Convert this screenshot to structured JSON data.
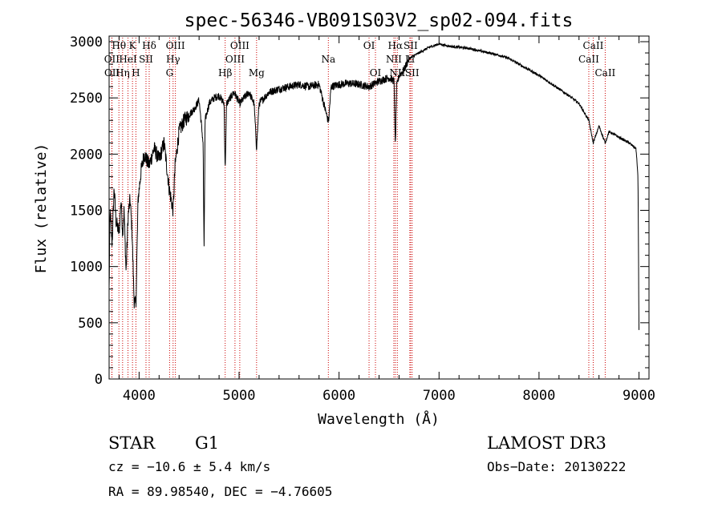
{
  "chart_data": {
    "type": "line",
    "title": "spec-56346-VB091S03V2_sp02-094.fits",
    "xlabel": "Wavelength (Å)",
    "ylabel": "Flux (relative)",
    "xlim": [
      3700,
      9100
    ],
    "ylim": [
      0,
      3050
    ],
    "xticks": [
      4000,
      5000,
      6000,
      7000,
      8000,
      9000
    ],
    "yticks": [
      0,
      500,
      1000,
      1500,
      2000,
      2500,
      3000
    ],
    "spectrum_color": "#000000",
    "marker_color": "#cc0000",
    "spectrum_anchors": [
      [
        3700,
        800
      ],
      [
        3710,
        1500
      ],
      [
        3730,
        1200
      ],
      [
        3750,
        1700
      ],
      [
        3770,
        1400
      ],
      [
        3800,
        1300
      ],
      [
        3820,
        1600
      ],
      [
        3835,
        1300
      ],
      [
        3850,
        1500
      ],
      [
        3870,
        950
      ],
      [
        3890,
        1450
      ],
      [
        3910,
        1600
      ],
      [
        3930,
        1300
      ],
      [
        3950,
        700
      ],
      [
        3968,
        650
      ],
      [
        3990,
        1600
      ],
      [
        4020,
        1850
      ],
      [
        4050,
        2000
      ],
      [
        4101,
        1900
      ],
      [
        4150,
        2050
      ],
      [
        4200,
        1950
      ],
      [
        4250,
        2100
      ],
      [
        4300,
        1700
      ],
      [
        4340,
        1500
      ],
      [
        4360,
        1900
      ],
      [
        4400,
        2200
      ],
      [
        4450,
        2300
      ],
      [
        4500,
        2350
      ],
      [
        4550,
        2400
      ],
      [
        4600,
        2480
      ],
      [
        4640,
        2100
      ],
      [
        4650,
        1100
      ],
      [
        4660,
        2300
      ],
      [
        4700,
        2450
      ],
      [
        4750,
        2500
      ],
      [
        4800,
        2520
      ],
      [
        4850,
        2450
      ],
      [
        4861,
        1850
      ],
      [
        4875,
        2450
      ],
      [
        4950,
        2550
      ],
      [
        5007,
        2450
      ],
      [
        5050,
        2500
      ],
      [
        5100,
        2550
      ],
      [
        5150,
        2450
      ],
      [
        5175,
        2050
      ],
      [
        5200,
        2450
      ],
      [
        5300,
        2550
      ],
      [
        5400,
        2580
      ],
      [
        5500,
        2600
      ],
      [
        5600,
        2620
      ],
      [
        5700,
        2600
      ],
      [
        5800,
        2620
      ],
      [
        5889,
        2300
      ],
      [
        5896,
        2300
      ],
      [
        5920,
        2600
      ],
      [
        6000,
        2620
      ],
      [
        6100,
        2630
      ],
      [
        6200,
        2620
      ],
      [
        6300,
        2600
      ],
      [
        6400,
        2650
      ],
      [
        6500,
        2680
      ],
      [
        6550,
        2650
      ],
      [
        6563,
        2050
      ],
      [
        6575,
        2600
      ],
      [
        6600,
        2700
      ],
      [
        6650,
        2750
      ],
      [
        6700,
        2850
      ],
      [
        6800,
        2900
      ],
      [
        6900,
        2950
      ],
      [
        7000,
        2980
      ],
      [
        7100,
        2960
      ],
      [
        7200,
        2950
      ],
      [
        7300,
        2940
      ],
      [
        7400,
        2920
      ],
      [
        7500,
        2900
      ],
      [
        7600,
        2880
      ],
      [
        7700,
        2850
      ],
      [
        7800,
        2800
      ],
      [
        7900,
        2750
      ],
      [
        8000,
        2700
      ],
      [
        8100,
        2640
      ],
      [
        8200,
        2580
      ],
      [
        8300,
        2520
      ],
      [
        8400,
        2450
      ],
      [
        8498,
        2300
      ],
      [
        8542,
        2100
      ],
      [
        8600,
        2250
      ],
      [
        8662,
        2100
      ],
      [
        8700,
        2200
      ],
      [
        8800,
        2150
      ],
      [
        8900,
        2100
      ],
      [
        8970,
        2050
      ],
      [
        8990,
        1800
      ],
      [
        9000,
        400
      ]
    ],
    "line_markers": [
      {
        "label": "Hθ",
        "wavelength": 3798,
        "row": 1
      },
      {
        "label": "OII",
        "wavelength": 3727,
        "row": 2
      },
      {
        "label": "OII",
        "wavelength": 3729,
        "row": 3
      },
      {
        "label": "Hη",
        "wavelength": 3835,
        "row": 3
      },
      {
        "label": "HeI",
        "wavelength": 3889,
        "row": 2
      },
      {
        "label": "K",
        "wavelength": 3934,
        "row": 1
      },
      {
        "label": "H",
        "wavelength": 3968,
        "row": 3
      },
      {
        "label": "SII",
        "wavelength": 4069,
        "row": 2
      },
      {
        "label": "Hδ",
        "wavelength": 4101,
        "row": 1
      },
      {
        "label": "OIII",
        "wavelength": 4363,
        "row": 1
      },
      {
        "label": "Hγ",
        "wavelength": 4340,
        "row": 2
      },
      {
        "label": "G",
        "wavelength": 4305,
        "row": 3
      },
      {
        "label": "Hβ",
        "wavelength": 4861,
        "row": 3
      },
      {
        "label": "OIII",
        "wavelength": 5007,
        "row": 1
      },
      {
        "label": "OIII",
        "wavelength": 4959,
        "row": 2
      },
      {
        "label": "Mg",
        "wavelength": 5175,
        "row": 3
      },
      {
        "label": "Na",
        "wavelength": 5893,
        "row": 2
      },
      {
        "label": "OI",
        "wavelength": 6300,
        "row": 1
      },
      {
        "label": "OI",
        "wavelength": 6364,
        "row": 3
      },
      {
        "label": "Hα",
        "wavelength": 6563,
        "row": 1
      },
      {
        "label": "SII",
        "wavelength": 6716,
        "row": 1
      },
      {
        "label": "NII",
        "wavelength": 6548,
        "row": 2
      },
      {
        "label": "Li",
        "wavelength": 6708,
        "row": 2
      },
      {
        "label": "NII",
        "wavelength": 6583,
        "row": 3
      },
      {
        "label": "SII",
        "wavelength": 6731,
        "row": 3
      },
      {
        "label": "CaII",
        "wavelength": 8542,
        "row": 1
      },
      {
        "label": "CaII",
        "wavelength": 8498,
        "row": 2
      },
      {
        "label": "CaII",
        "wavelength": 8662,
        "row": 3
      }
    ]
  },
  "info": {
    "object_class": "STAR",
    "subclass": "G1",
    "survey": "LAMOST DR3",
    "redshift": "cz = −10.6 ± 5.4 km/s",
    "obs_date": "Obs−Date: 20130222",
    "coords": "RA =  89.98540, DEC =  −4.76605"
  }
}
